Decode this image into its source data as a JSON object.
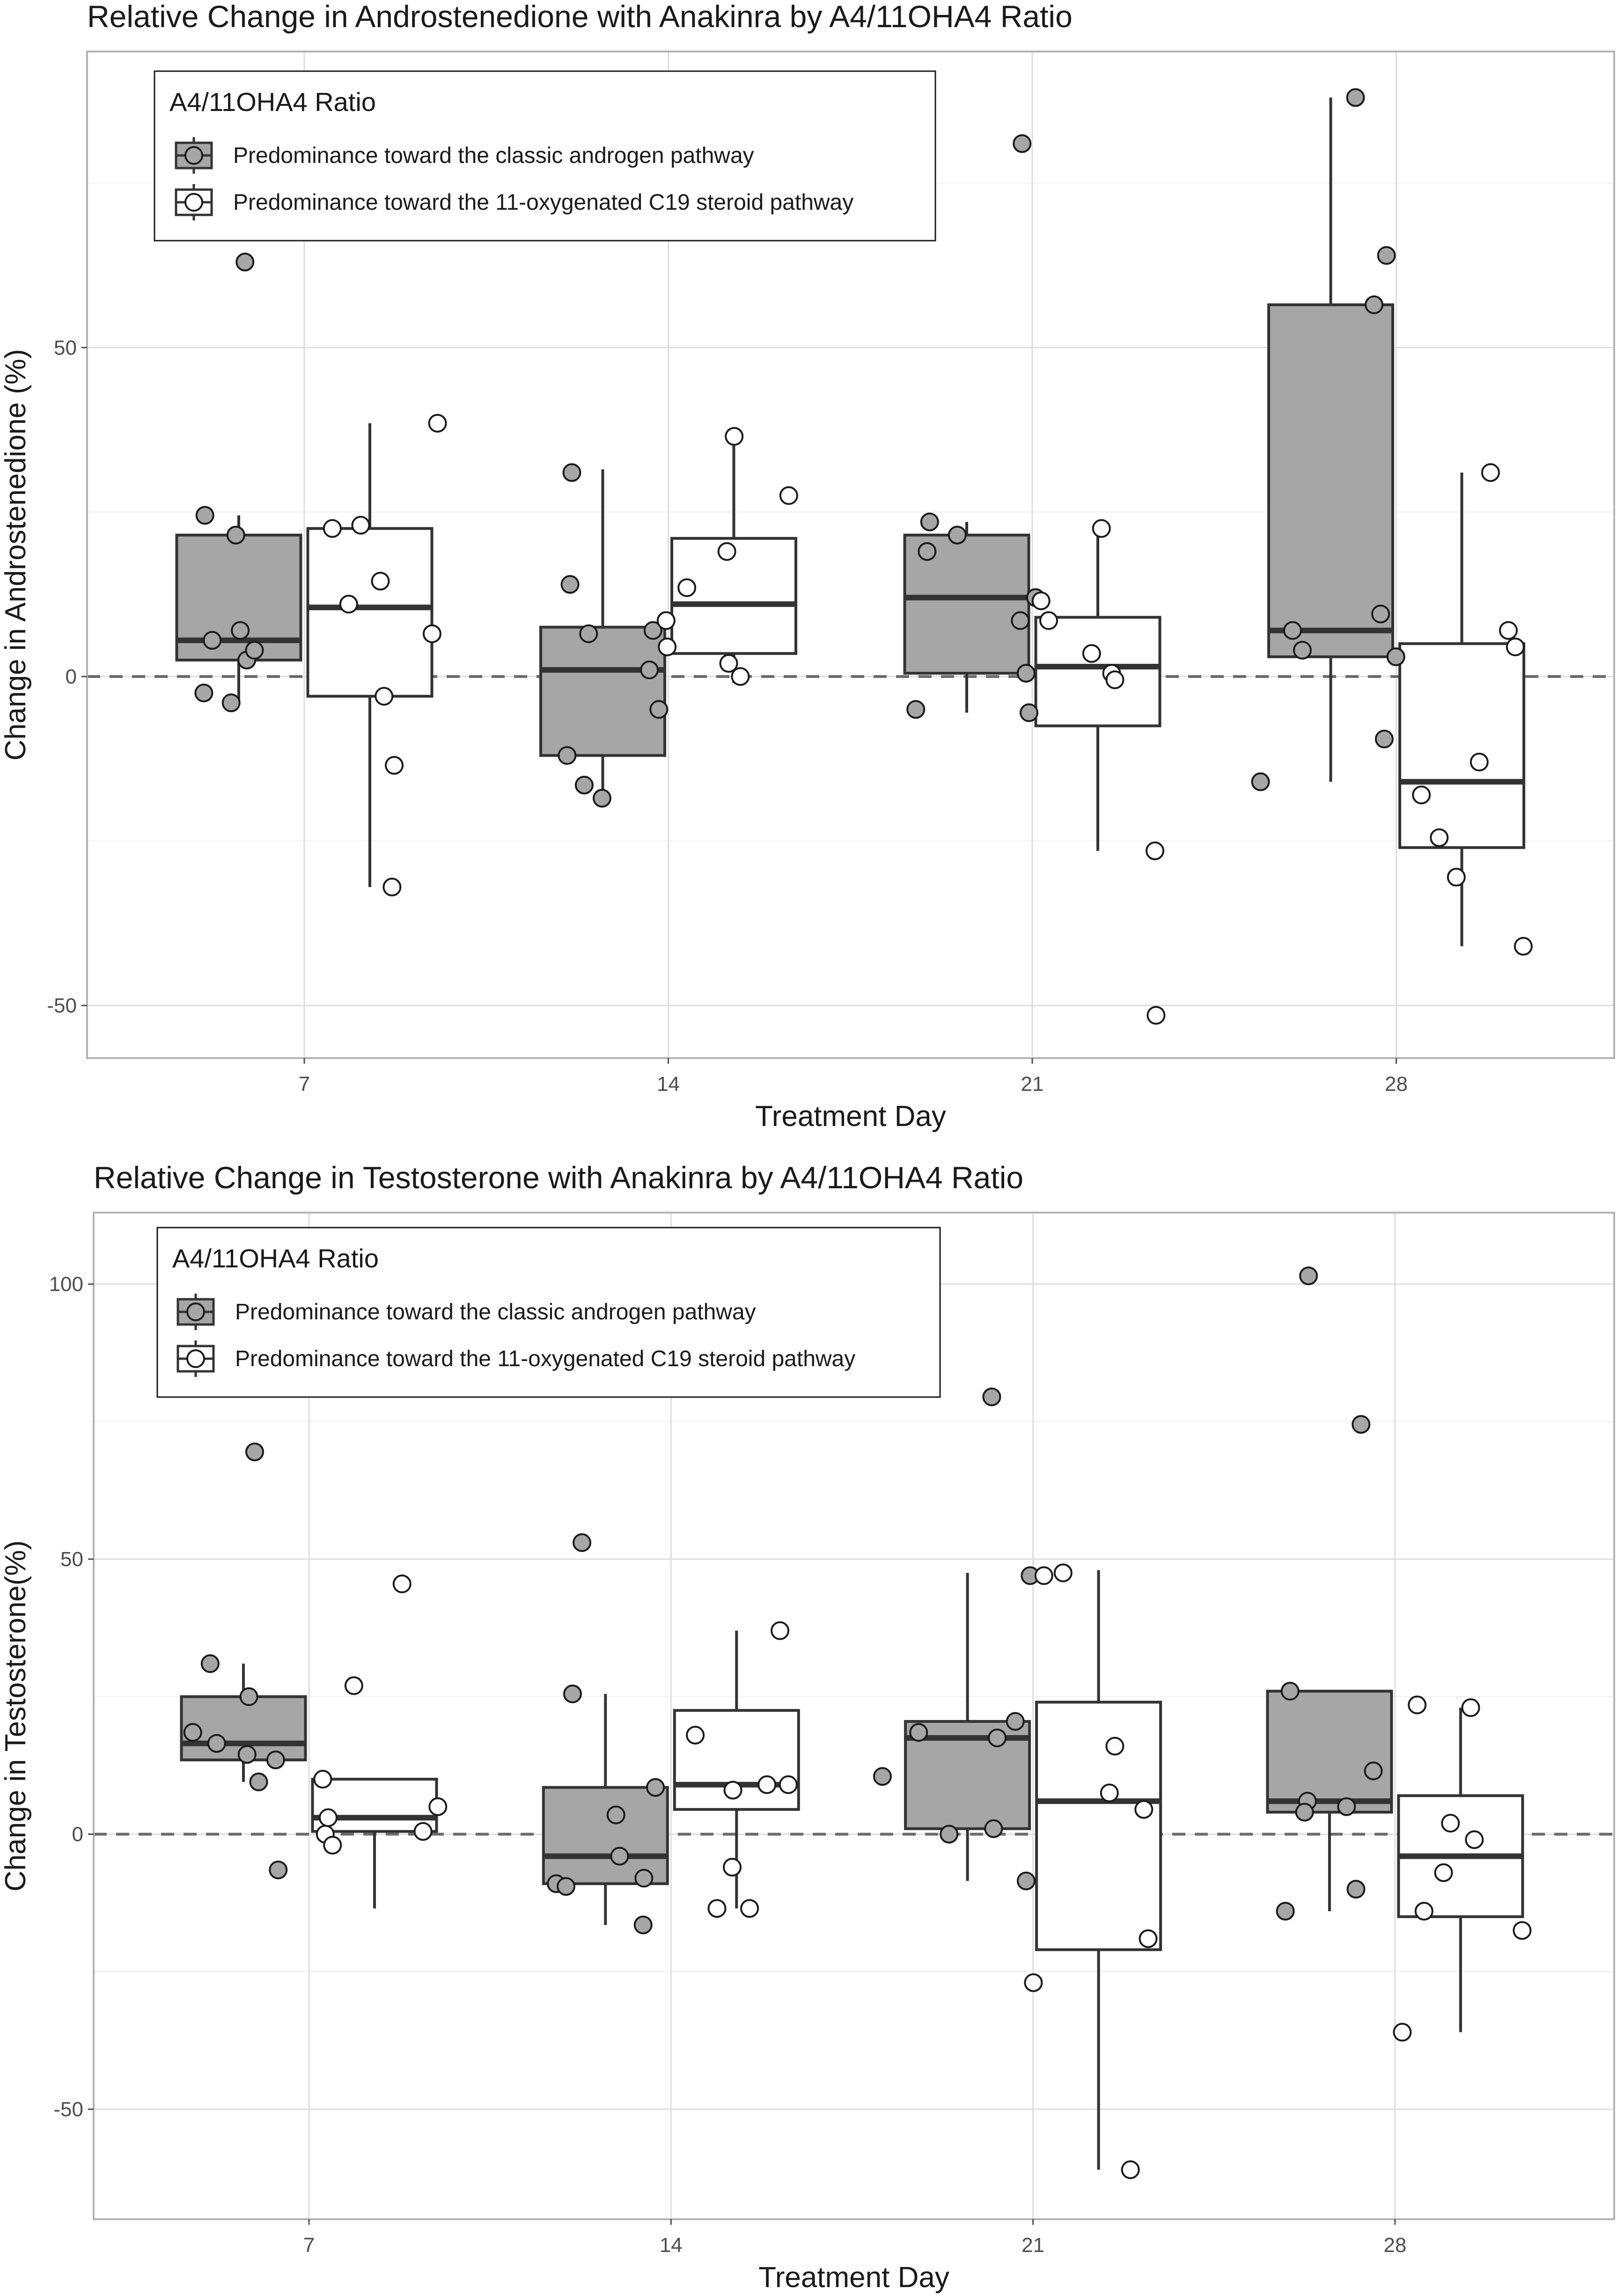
{
  "chart_data": [
    {
      "type": "box",
      "title": "Relative Change in Androstenedione with Anakinra by A4/11OHA4 Ratio",
      "xlabel": "Treatment Day",
      "ylabel": "Change in Androstenedione (%)",
      "ylim": [
        -58,
        95
      ],
      "y_ticks": [
        -50,
        0,
        50
      ],
      "y_tick_labels": [
        "-50",
        "0",
        "50"
      ],
      "categories": [
        "7",
        "14",
        "21",
        "28"
      ],
      "reference_line": 0,
      "legend": {
        "title": "A4/11OHA4 Ratio",
        "position": "top-left",
        "entries": [
          {
            "label": "Predominance toward the classic androgen pathway",
            "fill": "#a6a6a6"
          },
          {
            "label": "Predominance toward the 11-oxygenated C19 steroid pathway",
            "fill": "#ffffff"
          }
        ]
      },
      "series": [
        {
          "name": "Predominance toward the classic androgen pathway",
          "fill": "#a6a6a6",
          "boxes": [
            {
              "whisker_low": -4,
              "q1": 2.5,
              "median": 5.5,
              "q3": 21.5,
              "whisker_high": 24.5
            },
            {
              "whisker_low": -18.5,
              "q1": -12,
              "median": 1,
              "q3": 7.5,
              "whisker_high": 31.5
            },
            {
              "whisker_low": -5.5,
              "q1": 0.5,
              "median": 12,
              "q3": 21.5,
              "whisker_high": 23.5
            },
            {
              "whisker_low": -16,
              "q1": 3,
              "median": 7,
              "q3": 56.5,
              "whisker_high": 88
            }
          ],
          "points": [
            {
              "x": -0.273,
              "y": 24.5
            },
            {
              "x": -0.253,
              "y": 5.5
            },
            {
              "x": -0.188,
              "y": 21.5
            },
            {
              "x": -0.176,
              "y": 7
            },
            {
              "x": -0.158,
              "y": 2.5
            },
            {
              "x": -0.137,
              "y": 4
            },
            {
              "x": -0.276,
              "y": -2.5
            },
            {
              "x": -0.201,
              "y": -4
            },
            {
              "x": -0.163,
              "y": 63
            },
            {
              "x": -0.265,
              "y": 31
            },
            {
              "x": -0.27,
              "y": 14
            },
            {
              "x": -0.219,
              "y": 6.5
            },
            {
              "x": -0.042,
              "y": 7
            },
            {
              "x": -0.052,
              "y": 1
            },
            {
              "x": -0.026,
              "y": -5
            },
            {
              "x": -0.231,
              "y": -16.5
            },
            {
              "x": -0.278,
              "y": -12
            },
            {
              "x": -0.182,
              "y": -18.5
            },
            {
              "x": -0.282,
              "y": 23.5
            },
            {
              "x": -0.289,
              "y": 19
            },
            {
              "x": -0.206,
              "y": 21.5
            },
            {
              "x": -0.033,
              "y": 8.5
            },
            {
              "x": -0.017,
              "y": 0.5
            },
            {
              "x": -0.009,
              "y": -5.5
            },
            {
              "x": -0.32,
              "y": -5
            },
            {
              "x": -0.028,
              "y": 81
            },
            {
              "x": 0.009,
              "y": 12
            },
            {
              "x": -0.112,
              "y": 88
            },
            {
              "x": -0.061,
              "y": 56.5
            },
            {
              "x": -0.027,
              "y": 64
            },
            {
              "x": -0.285,
              "y": 7
            },
            {
              "x": -0.258,
              "y": 4
            },
            {
              "x": -0.043,
              "y": 9.5
            },
            {
              "x": -0.001,
              "y": 3
            },
            {
              "x": -0.373,
              "y": -16
            },
            {
              "x": -0.033,
              "y": -9.5
            }
          ]
        },
        {
          "name": "Predominance toward the 11-oxygenated C19 steroid pathway",
          "fill": "#ffffff",
          "boxes": [
            {
              "whisker_low": -32,
              "q1": -3,
              "median": 10.5,
              "q3": 22.5,
              "whisker_high": 38.5
            },
            {
              "whisker_low": -1,
              "q1": 3.5,
              "median": 11,
              "q3": 21,
              "whisker_high": 36.5
            },
            {
              "whisker_low": -26.5,
              "q1": -7.5,
              "median": 1.5,
              "q3": 9,
              "whisker_high": 22.5
            },
            {
              "whisker_low": -41,
              "q1": -26,
              "median": -16,
              "q3": 5,
              "whisker_high": 31
            }
          ],
          "points": [
            {
              "x": 0.077,
              "y": 22.5
            },
            {
              "x": 0.155,
              "y": 23
            },
            {
              "x": 0.209,
              "y": 14.5
            },
            {
              "x": 0.122,
              "y": 11
            },
            {
              "x": 0.351,
              "y": 6.5
            },
            {
              "x": 0.366,
              "y": 38.5
            },
            {
              "x": 0.219,
              "y": -3
            },
            {
              "x": 0.247,
              "y": -13.5
            },
            {
              "x": 0.241,
              "y": -32
            },
            {
              "x": -0.006,
              "y": 8.5
            },
            {
              "x": -0.003,
              "y": 4.5
            },
            {
              "x": 0.051,
              "y": 13.5
            },
            {
              "x": 0.161,
              "y": 19
            },
            {
              "x": 0.166,
              "y": 2
            },
            {
              "x": 0.198,
              "y": 0
            },
            {
              "x": 0.181,
              "y": 36.5
            },
            {
              "x": 0.331,
              "y": 27.5
            },
            {
              "x": 0.024,
              "y": 11.5
            },
            {
              "x": 0.045,
              "y": 8.5
            },
            {
              "x": 0.19,
              "y": 22.5
            },
            {
              "x": 0.163,
              "y": 3.5
            },
            {
              "x": 0.218,
              "y": 0.5
            },
            {
              "x": 0.227,
              "y": -0.5
            },
            {
              "x": 0.337,
              "y": -26.5
            },
            {
              "x": 0.34,
              "y": -51.5
            },
            {
              "x": 0.228,
              "y": -13
            },
            {
              "x": 0.069,
              "y": -18
            },
            {
              "x": 0.118,
              "y": -24.5
            },
            {
              "x": 0.165,
              "y": -30.5
            },
            {
              "x": 0.259,
              "y": 31
            },
            {
              "x": 0.308,
              "y": 7
            },
            {
              "x": 0.327,
              "y": 4.5
            },
            {
              "x": 0.349,
              "y": -41
            }
          ]
        }
      ]
    },
    {
      "type": "box",
      "title": "Relative Change in Testosterone with Anakinra by A4/11OHA4 Ratio",
      "xlabel": "Treatment Day",
      "ylabel": "Change in Testosterone(%)",
      "ylim": [
        -70,
        113
      ],
      "y_ticks": [
        -50,
        0,
        50,
        100
      ],
      "y_tick_labels": [
        "-50",
        "0",
        "50",
        "100"
      ],
      "categories": [
        "7",
        "14",
        "21",
        "28"
      ],
      "reference_line": 0,
      "legend": {
        "title": "A4/11OHA4 Ratio",
        "position": "top-left",
        "entries": [
          {
            "label": "Predominance toward the classic androgen pathway",
            "fill": "#a6a6a6"
          },
          {
            "label": "Predominance toward the 11-oxygenated C19 steroid pathway",
            "fill": "#ffffff"
          }
        ]
      },
      "series": [
        {
          "name": "Predominance toward the classic androgen pathway",
          "fill": "#a6a6a6",
          "boxes": [
            {
              "whisker_low": 9.5,
              "q1": 13.5,
              "median": 16.5,
              "q3": 25,
              "whisker_high": 31
            },
            {
              "whisker_low": -16.5,
              "q1": -9,
              "median": -4,
              "q3": 8.5,
              "whisker_high": 25.5
            },
            {
              "whisker_low": -8.5,
              "q1": 1,
              "median": 17.5,
              "q3": 20.5,
              "whisker_high": 47.5
            },
            {
              "whisker_low": -14,
              "q1": 4,
              "median": 6,
              "q3": 26,
              "whisker_high": 26
            }
          ],
          "points": [
            {
              "x": -0.321,
              "y": 18.5
            },
            {
              "x": -0.255,
              "y": 16.5
            },
            {
              "x": -0.171,
              "y": 14.5
            },
            {
              "x": -0.166,
              "y": 25
            },
            {
              "x": -0.139,
              "y": 9.5
            },
            {
              "x": -0.273,
              "y": 31
            },
            {
              "x": -0.092,
              "y": 13.5
            },
            {
              "x": -0.085,
              "y": -6.5
            },
            {
              "x": -0.15,
              "y": 69.5
            },
            {
              "x": -0.246,
              "y": 53
            },
            {
              "x": -0.272,
              "y": 25.5
            },
            {
              "x": -0.152,
              "y": 3.5
            },
            {
              "x": -0.043,
              "y": 8.5
            },
            {
              "x": -0.142,
              "y": -4
            },
            {
              "x": -0.075,
              "y": -8
            },
            {
              "x": -0.317,
              "y": -9
            },
            {
              "x": -0.29,
              "y": -9.5
            },
            {
              "x": -0.077,
              "y": -16.5
            },
            {
              "x": -0.316,
              "y": 18.5
            },
            {
              "x": -0.099,
              "y": 17.5
            },
            {
              "x": -0.049,
              "y": 20.5
            },
            {
              "x": -0.109,
              "y": 1
            },
            {
              "x": -0.232,
              "y": 0
            },
            {
              "x": -0.416,
              "y": 10.5
            },
            {
              "x": -0.008,
              "y": 47
            },
            {
              "x": -0.019,
              "y": -8.5
            },
            {
              "x": -0.114,
              "y": 79.5
            },
            {
              "x": -0.29,
              "y": 26
            },
            {
              "x": -0.242,
              "y": 6
            },
            {
              "x": -0.134,
              "y": 5
            },
            {
              "x": -0.25,
              "y": 4
            },
            {
              "x": -0.06,
              "y": 11.5
            },
            {
              "x": -0.239,
              "y": 101.5
            },
            {
              "x": -0.094,
              "y": 74.5
            },
            {
              "x": -0.108,
              "y": -10
            },
            {
              "x": -0.303,
              "y": -14
            }
          ]
        },
        {
          "name": "Predominance toward the 11-oxygenated C19 steroid pathway",
          "fill": "#ffffff",
          "boxes": [
            {
              "whisker_low": -13.5,
              "q1": 0.5,
              "median": 3,
              "q3": 10,
              "whisker_high": 10
            },
            {
              "whisker_low": -13.5,
              "q1": 4.5,
              "median": 9,
              "q3": 22.5,
              "whisker_high": 37
            },
            {
              "whisker_low": -61,
              "q1": -21,
              "median": 6,
              "q3": 24,
              "whisker_high": 48
            },
            {
              "whisker_low": -36,
              "q1": -15,
              "median": -4,
              "q3": 7,
              "whisker_high": 23
            }
          ],
          "points": [
            {
              "x": 0.038,
              "y": 10
            },
            {
              "x": 0.053,
              "y": 3
            },
            {
              "x": 0.045,
              "y": 0
            },
            {
              "x": 0.065,
              "y": -2
            },
            {
              "x": 0.356,
              "y": 5
            },
            {
              "x": 0.315,
              "y": 0.5
            },
            {
              "x": 0.257,
              "y": 45.5
            },
            {
              "x": 0.124,
              "y": 27
            },
            {
              "x": 0.127,
              "y": -13.5
            },
            {
              "x": 0.067,
              "y": 18
            },
            {
              "x": 0.171,
              "y": 8
            },
            {
              "x": 0.265,
              "y": 9
            },
            {
              "x": 0.324,
              "y": 9
            },
            {
              "x": 0.301,
              "y": 37
            },
            {
              "x": 0.169,
              "y": -6
            },
            {
              "x": 0.217,
              "y": -13.5
            },
            {
              "x": 0.03,
              "y": 47
            },
            {
              "x": 0.083,
              "y": 47.5
            },
            {
              "x": 0.226,
              "y": 16
            },
            {
              "x": 0.211,
              "y": 7.5
            },
            {
              "x": 0.306,
              "y": 4.5
            },
            {
              "x": 0.318,
              "y": -19
            },
            {
              "x": 0.001,
              "y": -27
            },
            {
              "x": 0.269,
              "y": -61
            },
            {
              "x": 0.061,
              "y": 23.5
            },
            {
              "x": 0.209,
              "y": 23
            },
            {
              "x": 0.153,
              "y": 2
            },
            {
              "x": 0.219,
              "y": -1
            },
            {
              "x": 0.134,
              "y": -7
            },
            {
              "x": 0.08,
              "y": -14
            },
            {
              "x": 0.351,
              "y": -17.5
            },
            {
              "x": 0.02,
              "y": -36
            }
          ]
        }
      ]
    }
  ]
}
